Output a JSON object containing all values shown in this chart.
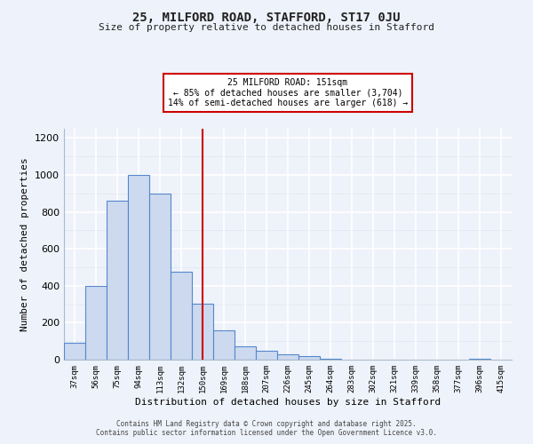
{
  "title1": "25, MILFORD ROAD, STAFFORD, ST17 0JU",
  "title2": "Size of property relative to detached houses in Stafford",
  "xlabel": "Distribution of detached houses by size in Stafford",
  "ylabel": "Number of detached properties",
  "bar_labels": [
    "37sqm",
    "56sqm",
    "75sqm",
    "94sqm",
    "113sqm",
    "132sqm",
    "150sqm",
    "169sqm",
    "188sqm",
    "207sqm",
    "226sqm",
    "245sqm",
    "264sqm",
    "283sqm",
    "302sqm",
    "321sqm",
    "339sqm",
    "358sqm",
    "377sqm",
    "396sqm",
    "415sqm"
  ],
  "bar_values": [
    90,
    400,
    860,
    1000,
    900,
    475,
    305,
    160,
    70,
    50,
    30,
    20,
    5,
    0,
    0,
    0,
    0,
    0,
    0,
    5,
    0
  ],
  "bar_color": "#ccd9ee",
  "bar_edge_color": "#5588cc",
  "vline_x": 6,
  "vline_color": "#cc0000",
  "annotation_title": "25 MILFORD ROAD: 151sqm",
  "annotation_line2": "← 85% of detached houses are smaller (3,704)",
  "annotation_line3": "14% of semi-detached houses are larger (618) →",
  "annotation_box_facecolor": "#ffffff",
  "annotation_box_edgecolor": "#cc0000",
  "ylim": [
    0,
    1250
  ],
  "yticks": [
    0,
    200,
    400,
    600,
    800,
    1000,
    1200
  ],
  "bg_color": "#eef2fa",
  "grid_color": "#ffffff",
  "grid_minor_color": "#dde4f0",
  "footer1": "Contains HM Land Registry data © Crown copyright and database right 2025.",
  "footer2": "Contains public sector information licensed under the Open Government Licence v3.0."
}
